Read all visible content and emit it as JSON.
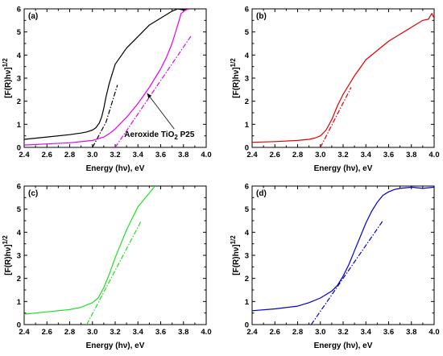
{
  "chart_data": [
    {
      "type": "line",
      "panel_label": "(a)",
      "xlabel": "Energy (hν), eV",
      "ylabel": "[F(R)hν]",
      "ylabel_sup": "1/2",
      "xlim": [
        2.4,
        4.0
      ],
      "ylim": [
        0,
        6
      ],
      "xticks": [
        "2.4",
        "2.6",
        "2.8",
        "3.0",
        "3.2",
        "3.4",
        "3.6",
        "3.8",
        "4.0"
      ],
      "yticks": [
        "0",
        "1",
        "2",
        "3",
        "4",
        "5",
        "6"
      ],
      "grid": false,
      "annotation": {
        "text": "Aeroxide TiO",
        "sub": "2",
        "tail": " P25",
        "arrow_to": [
          3.48,
          2.35
        ],
        "text_at": [
          3.28,
          0.45
        ]
      },
      "series": [
        {
          "color": "#000000",
          "style": "solid",
          "x": [
            2.4,
            2.6,
            2.8,
            2.9,
            2.95,
            3.0,
            3.03,
            3.06,
            3.08,
            3.1,
            3.12,
            3.15,
            3.2,
            3.3,
            3.4,
            3.5,
            3.6,
            3.7,
            3.75,
            3.8,
            3.85
          ],
          "y": [
            0.35,
            0.45,
            0.55,
            0.62,
            0.67,
            0.75,
            0.85,
            1.05,
            1.3,
            1.7,
            2.2,
            2.8,
            3.6,
            4.3,
            4.8,
            5.3,
            5.6,
            5.9,
            6.0,
            5.95,
            6.0
          ]
        },
        {
          "color": "#000000",
          "style": "dashdot",
          "x": [
            3.0,
            3.12,
            3.22
          ],
          "y": [
            0.0,
            1.1,
            2.7
          ]
        },
        {
          "color": "#e600e6",
          "style": "solid",
          "x": [
            2.4,
            2.6,
            2.8,
            3.0,
            3.1,
            3.15,
            3.2,
            3.3,
            3.4,
            3.5,
            3.6,
            3.65,
            3.7,
            3.75,
            3.78,
            3.82,
            3.85
          ],
          "y": [
            0.1,
            0.15,
            0.2,
            0.3,
            0.45,
            0.6,
            0.8,
            1.3,
            1.9,
            2.6,
            3.4,
            3.9,
            4.5,
            5.3,
            5.8,
            5.95,
            6.0
          ]
        },
        {
          "color": "#e600e6",
          "style": "dashdot",
          "x": [
            3.2,
            3.87
          ],
          "y": [
            0.0,
            4.85
          ]
        }
      ]
    },
    {
      "type": "line",
      "panel_label": "(b)",
      "xlabel": "Energy (hν), eV",
      "ylabel": "[F(R)hν]",
      "ylabel_sup": "1/2",
      "xlim": [
        2.4,
        4.0
      ],
      "ylim": [
        0,
        6
      ],
      "xticks": [
        "2.4",
        "2.6",
        "2.8",
        "3.0",
        "3.2",
        "3.4",
        "3.6",
        "3.8",
        "4.0"
      ],
      "yticks": [
        "0",
        "1",
        "2",
        "3",
        "4",
        "5",
        "6"
      ],
      "grid": false,
      "series": [
        {
          "color": "#e00000",
          "style": "solid",
          "x": [
            2.4,
            2.6,
            2.8,
            2.9,
            2.95,
            3.0,
            3.05,
            3.1,
            3.15,
            3.2,
            3.25,
            3.3,
            3.4,
            3.5,
            3.6,
            3.7,
            3.8,
            3.9,
            3.95,
            3.98,
            4.0
          ],
          "y": [
            0.22,
            0.25,
            0.3,
            0.35,
            0.4,
            0.5,
            0.75,
            1.2,
            1.8,
            2.3,
            2.7,
            3.1,
            3.8,
            4.2,
            4.6,
            4.9,
            5.2,
            5.5,
            5.55,
            5.8,
            5.6
          ]
        },
        {
          "color": "#e00000",
          "style": "dashdot",
          "x": [
            3.0,
            3.27
          ],
          "y": [
            0.0,
            2.6
          ]
        }
      ]
    },
    {
      "type": "line",
      "panel_label": "(c)",
      "xlabel": "Energy (hν), eV",
      "ylabel": "[F(R)hν]",
      "ylabel_sup": "1/2",
      "xlim": [
        2.4,
        4.0
      ],
      "ylim": [
        0,
        6
      ],
      "xticks": [
        "2.4",
        "2.6",
        "2.8",
        "3.0",
        "3.2",
        "3.4",
        "3.6",
        "3.8",
        "4.0"
      ],
      "yticks": [
        "0",
        "1",
        "2",
        "3",
        "4",
        "5",
        "6"
      ],
      "grid": false,
      "series": [
        {
          "color": "#22dd22",
          "style": "solid",
          "x": [
            2.4,
            2.6,
            2.8,
            2.9,
            3.0,
            3.05,
            3.1,
            3.15,
            3.2,
            3.25,
            3.3,
            3.35,
            3.4,
            3.45,
            3.5,
            3.55
          ],
          "y": [
            0.45,
            0.55,
            0.65,
            0.75,
            0.95,
            1.15,
            1.6,
            2.2,
            2.9,
            3.5,
            4.1,
            4.6,
            5.1,
            5.4,
            5.7,
            6.0
          ]
        },
        {
          "color": "#22dd22",
          "style": "dashdot",
          "x": [
            2.95,
            3.43
          ],
          "y": [
            0.0,
            4.5
          ]
        }
      ]
    },
    {
      "type": "line",
      "panel_label": "(d)",
      "xlabel": "Energy (hν), eV",
      "ylabel": "[F(R)hν]",
      "ylabel_sup": "1/2",
      "xlim": [
        2.4,
        4.0
      ],
      "ylim": [
        0,
        6
      ],
      "xticks": [
        "2.4",
        "2.6",
        "2.8",
        "3.0",
        "3.2",
        "3.4",
        "3.6",
        "3.8",
        "4.0"
      ],
      "yticks": [
        "0",
        "1",
        "2",
        "3",
        "4",
        "5",
        "6"
      ],
      "grid": false,
      "series": [
        {
          "color": "#0000cc",
          "style": "solid",
          "x": [
            2.4,
            2.6,
            2.8,
            2.9,
            3.0,
            3.1,
            3.15,
            3.2,
            3.25,
            3.3,
            3.35,
            3.4,
            3.45,
            3.5,
            3.55,
            3.6,
            3.65,
            3.7,
            3.8,
            3.9,
            4.0
          ],
          "y": [
            0.6,
            0.68,
            0.8,
            0.95,
            1.15,
            1.45,
            1.7,
            2.1,
            2.6,
            3.2,
            3.8,
            4.4,
            4.9,
            5.3,
            5.6,
            5.75,
            5.85,
            5.9,
            5.95,
            5.9,
            5.95
          ]
        },
        {
          "color": "#0000cc",
          "style": "dashdot",
          "x": [
            2.92,
            3.55
          ],
          "y": [
            0.0,
            4.5
          ]
        }
      ]
    }
  ]
}
